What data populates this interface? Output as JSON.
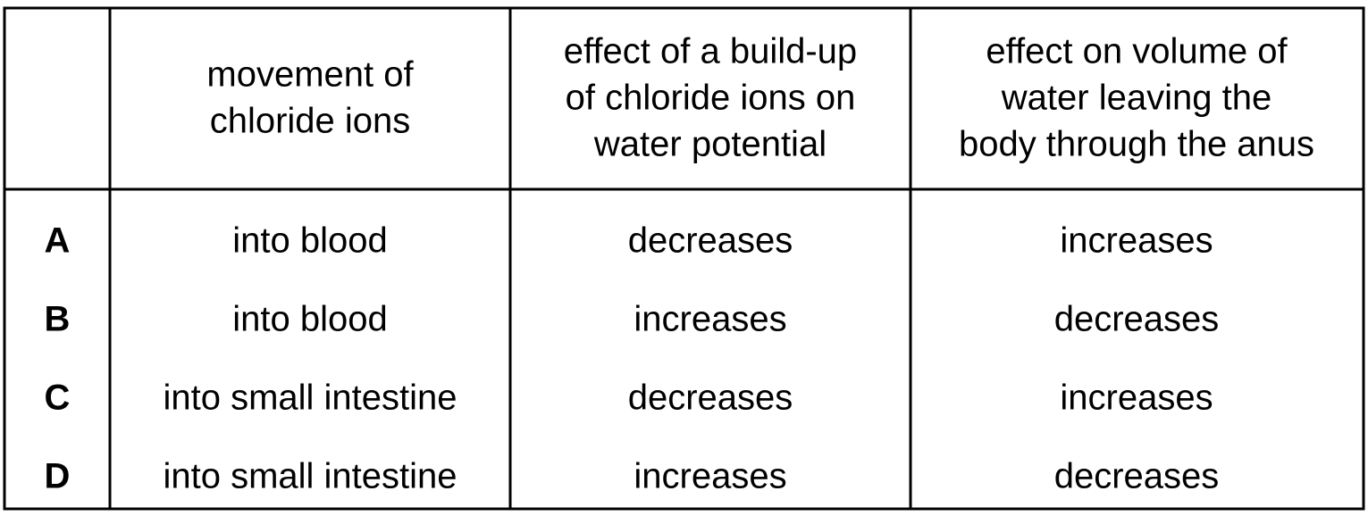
{
  "table": {
    "columns": [
      [
        "movement of",
        "chloride ions"
      ],
      [
        "effect of a build-up",
        "of chloride ions on",
        "water potential"
      ],
      [
        "effect on volume of",
        "water leaving the",
        "body through the anus"
      ]
    ],
    "rows": [
      {
        "label": "A",
        "cells": [
          "into blood",
          "decreases",
          "increases"
        ]
      },
      {
        "label": "B",
        "cells": [
          "into blood",
          "increases",
          "decreases"
        ]
      },
      {
        "label": "C",
        "cells": [
          "into small intestine",
          "decreases",
          "increases"
        ]
      },
      {
        "label": "D",
        "cells": [
          "into small intestine",
          "increases",
          "decreases"
        ]
      }
    ]
  }
}
